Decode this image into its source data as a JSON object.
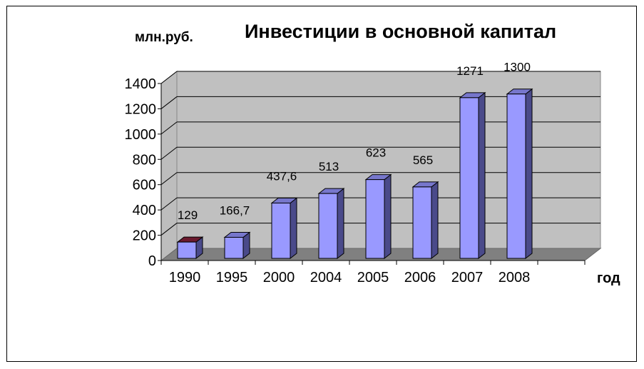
{
  "chart_data": {
    "type": "bar",
    "title": "Инвестиции в основной капитал",
    "ylabel": "млн.руб.",
    "xlabel": "год",
    "categories": [
      "1990",
      "1995",
      "2000",
      "2004",
      "2005",
      "2006",
      "2007",
      "2008"
    ],
    "values": [
      129,
      166.7,
      437.6,
      513,
      623,
      565,
      1271,
      1300
    ],
    "data_labels": [
      "129",
      "166,7",
      "437,6",
      "513",
      "623",
      "565",
      "1271",
      "1300"
    ],
    "ylim": [
      0,
      1400
    ],
    "yticks": [
      0,
      200,
      400,
      600,
      800,
      1000,
      1200,
      1400
    ],
    "grid": true,
    "three_d": true,
    "colors": {
      "bar_front": "#9999ff",
      "bar_side": "#4a4a8a",
      "bar_top": "#7777cc",
      "first_bar_top": "#6b1a2e",
      "back_wall": "#c0c0c0",
      "side_wall": "#bdbdbd",
      "floor": "#808080"
    }
  }
}
